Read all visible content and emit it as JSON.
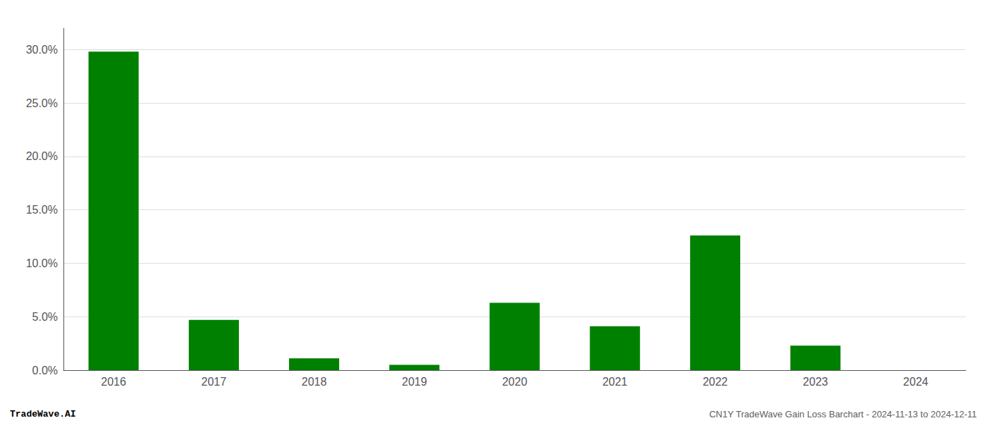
{
  "chart_data": {
    "type": "bar",
    "categories": [
      "2016",
      "2017",
      "2018",
      "2019",
      "2020",
      "2021",
      "2022",
      "2023",
      "2024"
    ],
    "values": [
      0.298,
      0.047,
      0.011,
      0.005,
      0.063,
      0.041,
      0.126,
      0.023,
      0.0
    ],
    "color": "#008000",
    "ylim": [
      0,
      0.32
    ],
    "yticks": [
      {
        "value": 0.0,
        "label": "0.0%"
      },
      {
        "value": 0.05,
        "label": "5.0%"
      },
      {
        "value": 0.1,
        "label": "10.0%"
      },
      {
        "value": 0.15,
        "label": "15.0%"
      },
      {
        "value": 0.2,
        "label": "20.0%"
      },
      {
        "value": 0.25,
        "label": "25.0%"
      },
      {
        "value": 0.3,
        "label": "30.0%"
      }
    ],
    "grid": true,
    "annotations": [
      "TradeWave.AI",
      "CN1Y TradeWave Gain Loss Barchart - 2024-11-13 to 2024-12-11"
    ]
  }
}
